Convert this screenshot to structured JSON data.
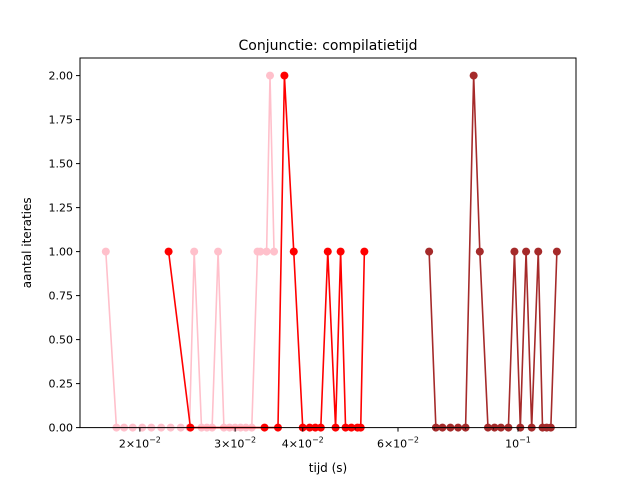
{
  "chart_data": {
    "type": "line",
    "title": "Conjunctie: compilatietijd",
    "xlabel": "tijd (s)",
    "ylabel": "aantal iteraties",
    "xscale": "log",
    "xlim": [
      0.0155,
      0.128
    ],
    "ylim": [
      0,
      2.1
    ],
    "grid": false,
    "legend": "none",
    "x_ticks": [
      {
        "value": 0.02,
        "base": "2×10",
        "exp": "−2"
      },
      {
        "value": 0.03,
        "base": "3×10",
        "exp": "−2"
      },
      {
        "value": 0.04,
        "base": "4×10",
        "exp": "−2"
      },
      {
        "value": 0.06,
        "base": "6×10",
        "exp": "−2"
      },
      {
        "value": 0.1,
        "base": "10",
        "exp": "−1"
      }
    ],
    "y_ticks": [
      "0.00",
      "0.25",
      "0.50",
      "0.75",
      "1.00",
      "1.25",
      "1.50",
      "1.75",
      "2.00"
    ],
    "series": [
      {
        "color": "#ffc0cb",
        "x": [
          0.0173,
          0.0181,
          0.0187,
          0.0194,
          0.0202,
          0.021,
          0.0219,
          0.0228,
          0.0238,
          0.0247,
          0.0252,
          0.026,
          0.0266,
          0.0272,
          0.0279,
          0.0286,
          0.0293,
          0.03,
          0.0307,
          0.0314,
          0.0322,
          0.033,
          0.0334,
          0.0343,
          0.0348,
          0.0354
        ],
        "y": [
          1,
          0,
          0,
          0,
          0,
          0,
          0,
          0,
          0,
          0,
          1,
          0,
          0,
          0,
          1,
          0,
          0,
          0,
          0,
          0,
          0,
          1,
          1,
          1,
          2,
          1
        ]
      },
      {
        "color": "#ff0000",
        "x": [
          0.0226,
          0.0248,
          0.034,
          0.036,
          0.037,
          0.0385,
          0.04,
          0.0412,
          0.0422,
          0.0432,
          0.0445,
          0.046,
          0.047,
          0.048,
          0.0492,
          0.0505,
          0.0512,
          0.052
        ],
        "y": [
          1,
          0,
          0,
          0,
          2,
          1,
          0,
          0,
          0,
          0,
          1,
          0,
          1,
          0,
          0,
          0,
          0,
          1
        ]
      },
      {
        "color": "#a52a2a",
        "x": [
          0.0685,
          0.0705,
          0.0725,
          0.075,
          0.0775,
          0.08,
          0.0828,
          0.085,
          0.088,
          0.0905,
          0.093,
          0.096,
          0.0985,
          0.101,
          0.1035,
          0.106,
          0.109,
          0.111,
          0.113,
          0.115,
          0.118
        ],
        "y": [
          1,
          0,
          0,
          0,
          0,
          0,
          2,
          1,
          0,
          0,
          0,
          0,
          1,
          0,
          1,
          0,
          1,
          0,
          0,
          0,
          1
        ]
      }
    ]
  }
}
